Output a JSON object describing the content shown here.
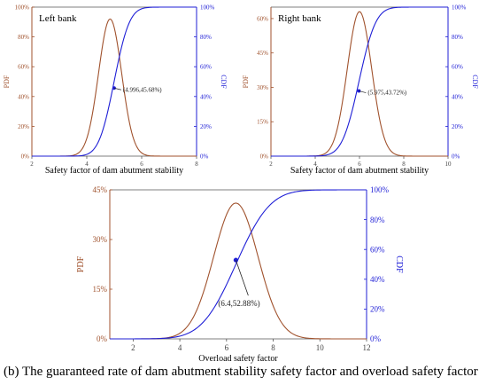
{
  "caption": "(b) The guaranteed rate of dam abutment stability safety factor and overload safety factor",
  "colors": {
    "pdf": "#a0522d",
    "cdf": "#1f1fd6",
    "axis_left": "#a0522d",
    "axis_right": "#1f1fd6"
  },
  "chart_data": [
    {
      "type": "line",
      "panel_title": "Left bank",
      "xlabel": "Safety factor of dam abutment stability",
      "ylabel_left": "PDF",
      "ylabel_right": "CDF",
      "xlim": [
        2,
        8
      ],
      "xticks": [
        "2",
        "4",
        "6",
        "8"
      ],
      "xtick_values": [
        2,
        4,
        6,
        8
      ],
      "ylim_left": [
        0,
        100
      ],
      "yticks_left": [
        "0%",
        "20%",
        "40%",
        "60%",
        "80%",
        "100%"
      ],
      "ylim_right": [
        0,
        100
      ],
      "yticks_right": [
        "0%",
        "20%",
        "40%",
        "60%",
        "80%",
        "100%"
      ],
      "pdf": {
        "peak_x": 4.85,
        "peak_y": 92,
        "sigma": 0.42
      },
      "cdf": {
        "mean": 4.996,
        "sigma": 0.44
      },
      "point": {
        "x": 4.996,
        "y": 45.68
      },
      "annotation": "(4.996,45.68%)"
    },
    {
      "type": "line",
      "panel_title": "Right bank",
      "xlabel": "Safety factor of dam abutment stability",
      "ylabel_left": "PDF",
      "ylabel_right": "CDF",
      "xlim": [
        2,
        10
      ],
      "xticks": [
        "2",
        "4",
        "6",
        "8",
        "10"
      ],
      "xtick_values": [
        2,
        4,
        6,
        8,
        10
      ],
      "ylim_left": [
        0,
        65
      ],
      "yticks_left": [
        "0%",
        "15%",
        "30%",
        "45%",
        "60%"
      ],
      "ylim_right": [
        0,
        100
      ],
      "yticks_right": [
        "0%",
        "20%",
        "40%",
        "60%",
        "80%",
        "100%"
      ],
      "pdf": {
        "peak_x": 6.0,
        "peak_y": 63,
        "sigma": 0.55
      },
      "cdf": {
        "mean": 5.975,
        "sigma": 0.6
      },
      "point": {
        "x": 5.975,
        "y": 43.72
      },
      "annotation": "(5.975,43.72%)"
    },
    {
      "type": "line",
      "panel_title": "",
      "xlabel": "Overload safety factor",
      "ylabel_left": "PDF",
      "ylabel_right": "CDF",
      "xlim": [
        1,
        12
      ],
      "xticks": [
        "2",
        "4",
        "6",
        "8",
        "10",
        "12"
      ],
      "xtick_values": [
        2,
        4,
        6,
        8,
        10,
        12
      ],
      "ylim_left": [
        0,
        45
      ],
      "yticks_left": [
        "0%",
        "15%",
        "30%",
        "45%"
      ],
      "ylim_right": [
        0,
        100
      ],
      "yticks_right": [
        "0%",
        "20%",
        "40%",
        "60%",
        "80%",
        "100%"
      ],
      "pdf": {
        "peak_x": 6.4,
        "peak_y": 41,
        "sigma": 0.95
      },
      "cdf": {
        "mean": 6.4,
        "sigma": 1.15
      },
      "point": {
        "x": 6.4,
        "y": 52.88
      },
      "annotation": "(6.4,52.88%)"
    }
  ]
}
